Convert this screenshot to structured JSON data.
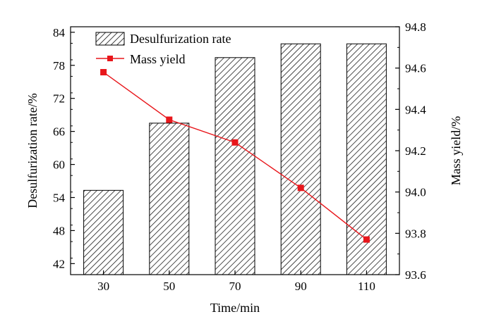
{
  "chart_data": {
    "type": "bar",
    "categories": [
      "30",
      "50",
      "70",
      "90",
      "110"
    ],
    "series": [
      {
        "name": "Desulfurization rate",
        "type": "bar",
        "axis": "left",
        "values": [
          55.3,
          67.5,
          79.4,
          81.9,
          81.9
        ],
        "pattern": "hatched",
        "color": "#000000"
      },
      {
        "name": "Mass yield",
        "type": "line",
        "axis": "right",
        "marker": "square",
        "values": [
          94.58,
          94.35,
          94.24,
          94.02,
          93.77
        ],
        "color": "#e8161b"
      }
    ],
    "xlabel": "Time/min",
    "ylabel": "Desulfurization rate/%",
    "y2label": "Mass yield/%",
    "ylim": [
      40,
      85
    ],
    "yticks": [
      "42",
      "48",
      "54",
      "60",
      "66",
      "72",
      "78",
      "84"
    ],
    "y2lim": [
      93.6,
      94.8
    ],
    "y2ticks": [
      "93.6",
      "93.8",
      "94.0",
      "94.2",
      "94.4",
      "94.6",
      "94.8"
    ],
    "grid": false,
    "legend_position": "top-left"
  }
}
